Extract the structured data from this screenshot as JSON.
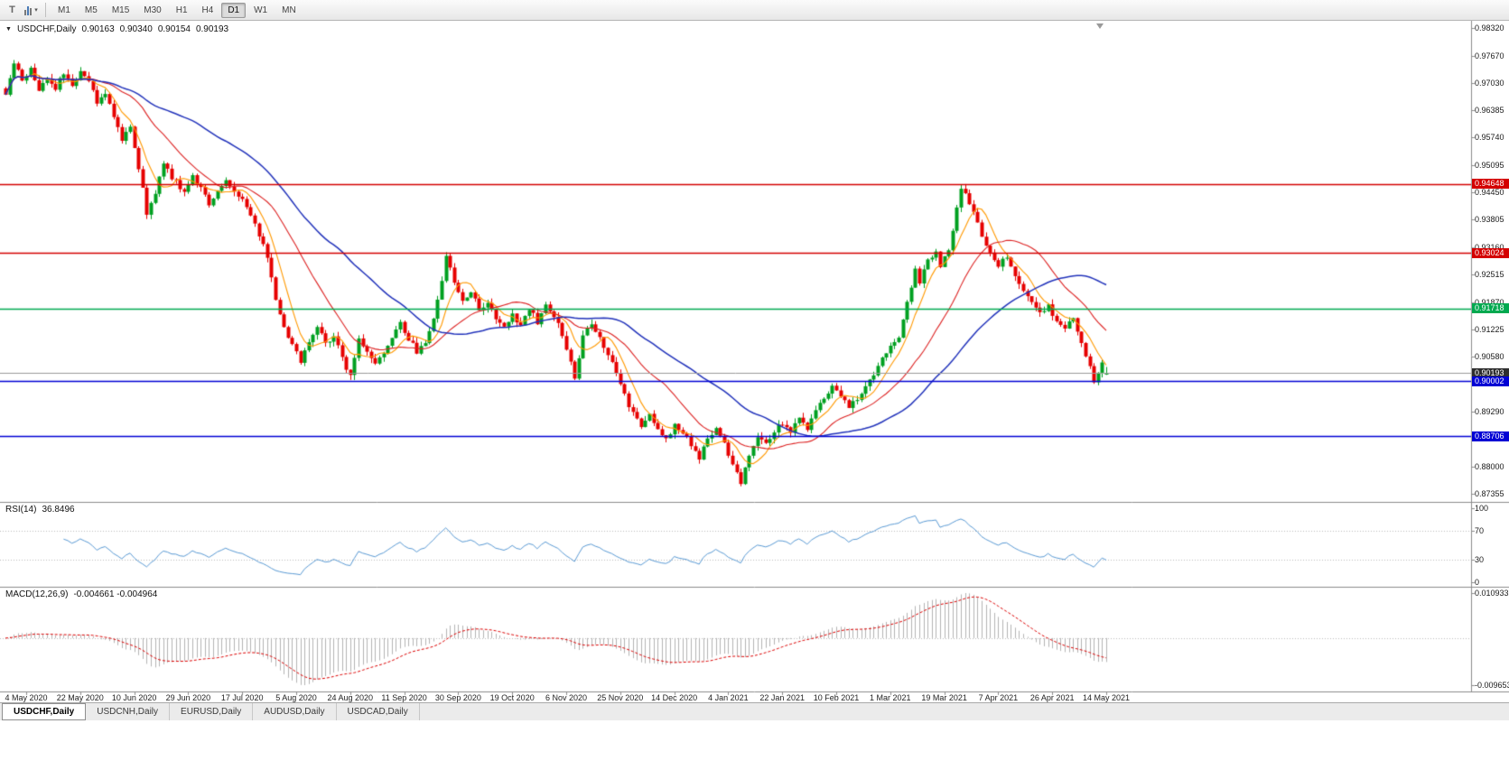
{
  "toolbar": {
    "icons": {
      "template_tool": "T",
      "dropdown_caret": "▾",
      "collapse_triangle": "▼"
    },
    "timeframes": [
      {
        "label": "M1",
        "active": false
      },
      {
        "label": "M5",
        "active": false
      },
      {
        "label": "M15",
        "active": false
      },
      {
        "label": "M30",
        "active": false
      },
      {
        "label": "H1",
        "active": false
      },
      {
        "label": "H4",
        "active": false
      },
      {
        "label": "D1",
        "active": true
      },
      {
        "label": "W1",
        "active": false
      },
      {
        "label": "MN",
        "active": false
      }
    ]
  },
  "chart": {
    "collapse_icon": "▼",
    "symbol_label": "USDCHF,Daily",
    "ohlc": {
      "open": "0.90163",
      "high": "0.90340",
      "low": "0.90154",
      "close": "0.90193"
    },
    "price_axis": {
      "ticks": [
        "0.98320",
        "0.97670",
        "0.97030",
        "0.96385",
        "0.95740",
        "0.95095",
        "0.94450",
        "0.93805",
        "0.93160",
        "0.92515",
        "0.91870",
        "0.91225",
        "0.90580",
        "0.89290",
        "0.88000",
        "0.87355"
      ]
    },
    "price_flags": [
      {
        "text": "0.94648",
        "price": 0.94648,
        "bg": "#d40000"
      },
      {
        "text": "0.93024",
        "price": 0.93024,
        "bg": "#d40000"
      },
      {
        "text": "0.91718",
        "price": 0.91718,
        "bg": "#00a94f"
      },
      {
        "text": "0.90193",
        "price": 0.90193,
        "bg": "#2e2e2e"
      },
      {
        "text": "0.90002",
        "price": 0.90002,
        "bg": "#0000d4"
      },
      {
        "text": "0.88706",
        "price": 0.88706,
        "bg": "#0000d4"
      }
    ],
    "date_axis": {
      "labels": [
        "4 May 2020",
        "22 May 2020",
        "10 Jun 2020",
        "29 Jun 2020",
        "17 Jul 2020",
        "5 Aug 2020",
        "24 Aug 2020",
        "11 Sep 2020",
        "30 Sep 2020",
        "19 Oct 2020",
        "6 Nov 2020",
        "25 Nov 2020",
        "14 Dec 2020",
        "4 Jan 2021",
        "22 Jan 2021",
        "10 Feb 2021",
        "1 Mar 2021",
        "19 Mar 2021",
        "7 Apr 2021",
        "26 Apr 2021",
        "14 May 2021"
      ]
    }
  },
  "rsi_panel": {
    "title": "RSI(14)",
    "value": "36.8496",
    "axis_labels": [
      "100",
      "70",
      "30",
      "0"
    ]
  },
  "macd_panel": {
    "title": "MACD(12,26,9)",
    "values": "-0.004661 -0.004964",
    "axis_labels": [
      "0.010933",
      "-0.009653"
    ]
  },
  "tabs": [
    {
      "label": "USDCHF,Daily",
      "active": true
    },
    {
      "label": "USDCNH,Daily",
      "active": false
    },
    {
      "label": "EURUSD,Daily",
      "active": false
    },
    {
      "label": "AUDUSD,Daily",
      "active": false
    },
    {
      "label": "USDCAD,Daily",
      "active": false
    }
  ],
  "colors": {
    "up_candle": "#00a020",
    "down_candle": "#e60000",
    "ma_fast": "#ff9900",
    "ma_mid": "#dd2222",
    "ma_slow": "#2233bb",
    "rsi_line": "#5b9bd5",
    "macd_histogram": "#b4b4b4",
    "macd_signal": "#dd0000",
    "current_price_line": "#9a9a9a",
    "panel_border": "#8c8c8c",
    "level_dotted": "#bdbdbd"
  },
  "chart_data": {
    "main": {
      "type": "candlestick",
      "symbol": "USDCHF",
      "timeframe": "Daily",
      "title": "USDCHF,Daily 0.90163 0.90340 0.90154 0.90193",
      "ylim": [
        0.87355,
        0.9832
      ],
      "y_ticks": [
        0.9832,
        0.9767,
        0.9703,
        0.96385,
        0.9574,
        0.95095,
        0.9445,
        0.93805,
        0.9316,
        0.92515,
        0.9187,
        0.91225,
        0.9058,
        0.8929,
        0.88,
        0.87355
      ],
      "x_labels": [
        "4 May 2020",
        "22 May 2020",
        "10 Jun 2020",
        "29 Jun 2020",
        "17 Jul 2020",
        "5 Aug 2020",
        "24 Aug 2020",
        "11 Sep 2020",
        "30 Sep 2020",
        "19 Oct 2020",
        "6 Nov 2020",
        "25 Nov 2020",
        "14 Dec 2020",
        "4 Jan 2021",
        "22 Jan 2021",
        "10 Feb 2021",
        "1 Mar 2021",
        "19 Mar 2021",
        "7 Apr 2021",
        "26 Apr 2021",
        "14 May 2021"
      ],
      "candles_per_label_interval": 13,
      "last_candle": {
        "open": 0.90163,
        "high": 0.9034,
        "low": 0.90154,
        "close": 0.90193
      },
      "current_price": 0.90193,
      "close_path_anchors": [
        [
          -5,
          0.968
        ],
        [
          -3,
          0.9745
        ],
        [
          -1,
          0.971
        ],
        [
          1,
          0.9735
        ],
        [
          3,
          0.9685
        ],
        [
          5,
          0.9715
        ],
        [
          7,
          0.969
        ],
        [
          9,
          0.9725
        ],
        [
          11,
          0.9695
        ],
        [
          13,
          0.9735
        ],
        [
          15,
          0.9705
        ],
        [
          17,
          0.966
        ],
        [
          19,
          0.9675
        ],
        [
          21,
          0.9625
        ],
        [
          23,
          0.9565
        ],
        [
          25,
          0.96
        ],
        [
          27,
          0.9505
        ],
        [
          28,
          0.9455
        ],
        [
          29,
          0.9395
        ],
        [
          31,
          0.9445
        ],
        [
          33,
          0.9515
        ],
        [
          35,
          0.948
        ],
        [
          38,
          0.9445
        ],
        [
          40,
          0.948
        ],
        [
          42,
          0.946
        ],
        [
          44,
          0.942
        ],
        [
          46,
          0.945
        ],
        [
          48,
          0.9475
        ],
        [
          50,
          0.945
        ],
        [
          52,
          0.943
        ],
        [
          54,
          0.939
        ],
        [
          56,
          0.9345
        ],
        [
          58,
          0.929
        ],
        [
          60,
          0.9195
        ],
        [
          62,
          0.9125
        ],
        [
          64,
          0.9085
        ],
        [
          66,
          0.905
        ],
        [
          68,
          0.909
        ],
        [
          70,
          0.913
        ],
        [
          72,
          0.9085
        ],
        [
          74,
          0.911
        ],
        [
          76,
          0.9055
        ],
        [
          78,
          0.901
        ],
        [
          80,
          0.9095
        ],
        [
          82,
          0.9075
        ],
        [
          84,
          0.904
        ],
        [
          86,
          0.9065
        ],
        [
          88,
          0.91
        ],
        [
          90,
          0.9135
        ],
        [
          92,
          0.91
        ],
        [
          94,
          0.907
        ],
        [
          96,
          0.909
        ],
        [
          98,
          0.915
        ],
        [
          100,
          0.924
        ],
        [
          101,
          0.9295
        ],
        [
          103,
          0.923
        ],
        [
          105,
          0.919
        ],
        [
          107,
          0.9215
        ],
        [
          109,
          0.9165
        ],
        [
          111,
          0.919
        ],
        [
          113,
          0.915
        ],
        [
          115,
          0.9125
        ],
        [
          117,
          0.916
        ],
        [
          119,
          0.913
        ],
        [
          121,
          0.917
        ],
        [
          123,
          0.914
        ],
        [
          125,
          0.9185
        ],
        [
          127,
          0.9155
        ],
        [
          129,
          0.911
        ],
        [
          131,
          0.905
        ],
        [
          132,
          0.9005
        ],
        [
          134,
          0.911
        ],
        [
          136,
          0.914
        ],
        [
          138,
          0.9105
        ],
        [
          140,
          0.9065
        ],
        [
          142,
          0.902
        ],
        [
          144,
          0.8965
        ],
        [
          146,
          0.8925
        ],
        [
          148,
          0.889
        ],
        [
          150,
          0.892
        ],
        [
          152,
          0.889
        ],
        [
          154,
          0.8862
        ],
        [
          156,
          0.89
        ],
        [
          158,
          0.888
        ],
        [
          160,
          0.885
        ],
        [
          162,
          0.8822
        ],
        [
          164,
          0.886
        ],
        [
          166,
          0.8888
        ],
        [
          168,
          0.885
        ],
        [
          170,
          0.88
        ],
        [
          172,
          0.8762
        ],
        [
          174,
          0.883
        ],
        [
          176,
          0.887
        ],
        [
          178,
          0.8852
        ],
        [
          180,
          0.8885
        ],
        [
          182,
          0.8902
        ],
        [
          184,
          0.888
        ],
        [
          186,
          0.8912
        ],
        [
          188,
          0.8892
        ],
        [
          190,
          0.893
        ],
        [
          192,
          0.8962
        ],
        [
          194,
          0.899
        ],
        [
          196,
          0.8968
        ],
        [
          198,
          0.8935
        ],
        [
          200,
          0.8962
        ],
        [
          202,
          0.899
        ],
        [
          204,
          0.9018
        ],
        [
          206,
          0.9058
        ],
        [
          208,
          0.9082
        ],
        [
          210,
          0.9105
        ],
        [
          212,
          0.919
        ],
        [
          214,
          0.9262
        ],
        [
          215,
          0.9235
        ],
        [
          217,
          0.9285
        ],
        [
          219,
          0.9305
        ],
        [
          220,
          0.9275
        ],
        [
          222,
          0.9315
        ],
        [
          224,
          0.9405
        ],
        [
          225,
          0.9458
        ],
        [
          226,
          0.9448
        ],
        [
          228,
          0.9395
        ],
        [
          230,
          0.9345
        ],
        [
          232,
          0.9305
        ],
        [
          234,
          0.9275
        ],
        [
          236,
          0.9295
        ],
        [
          238,
          0.9245
        ],
        [
          240,
          0.9215
        ],
        [
          242,
          0.9185
        ],
        [
          244,
          0.916
        ],
        [
          246,
          0.9175
        ],
        [
          248,
          0.9145
        ],
        [
          250,
          0.9125
        ],
        [
          252,
          0.9148
        ],
        [
          254,
          0.9095
        ],
        [
          256,
          0.903
        ],
        [
          257,
          0.8995
        ],
        [
          258,
          0.9015
        ],
        [
          259,
          0.904
        ],
        [
          260,
          0.90193
        ]
      ],
      "horizontal_lines": [
        {
          "price": 0.94648,
          "color": "#d40000"
        },
        {
          "price": 0.93024,
          "color": "#d40000"
        },
        {
          "price": 0.91718,
          "color": "#00a94f"
        },
        {
          "price": 0.90002,
          "color": "#0000d4"
        },
        {
          "price": 0.88706,
          "color": "#0000d4"
        }
      ],
      "moving_averages": [
        {
          "period": 7,
          "color": "#ff9900",
          "width": 1.1
        },
        {
          "period": 21,
          "color": "#dd2222",
          "width": 1.1
        },
        {
          "period": 45,
          "color": "#2233bb",
          "width": 1.5
        }
      ]
    },
    "rsi": {
      "type": "line",
      "label": "RSI(14)",
      "current_value": 36.8496,
      "range": [
        0,
        100
      ],
      "levels": [
        70,
        30
      ],
      "axis_labels": [
        100,
        70,
        30,
        0
      ]
    },
    "macd": {
      "type": "histogram+line",
      "label": "MACD(12,26,9)",
      "macd_value": -0.004661,
      "signal_value": -0.004964,
      "axis_range": [
        -0.009653,
        0.010933
      ],
      "signal_style": "dashed"
    }
  }
}
